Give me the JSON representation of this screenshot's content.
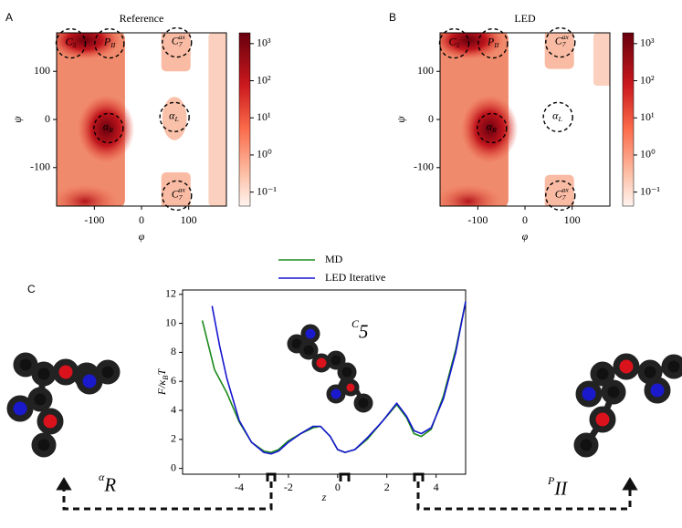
{
  "chart_data": [
    {
      "type": "heatmap",
      "panel": "A",
      "title": "Reference",
      "xlabel": "φ",
      "ylabel": "ψ",
      "xlim": [
        -180,
        180
      ],
      "ylim": [
        -180,
        180
      ],
      "xticks": [
        -100,
        0,
        100
      ],
      "yticks": [
        -100,
        0,
        100
      ],
      "colorscale": "log",
      "clim": [
        0.042,
        1950
      ],
      "cticks": [
        {
          "value": 0.1,
          "label": "10⁻¹"
        },
        {
          "value": 1,
          "label": "10⁰"
        },
        {
          "value": 10,
          "label": "10¹"
        },
        {
          "value": 100,
          "label": "10²"
        },
        {
          "value": 1000,
          "label": "10³"
        }
      ],
      "annotations": [
        {
          "base": "C",
          "sub": "5",
          "x": -150,
          "y": 158
        },
        {
          "base": "P",
          "sub": "II",
          "x": -68,
          "y": 158
        },
        {
          "base": "C",
          "sub": "7",
          "sup": "ax",
          "x": 75,
          "y": 160
        },
        {
          "base": "α",
          "sub": "R",
          "x": -70,
          "y": -18
        },
        {
          "base": "α",
          "sub": "L",
          "x": 70,
          "y": 5
        },
        {
          "base": "C",
          "sub": "7",
          "sup": "ax",
          "x": 75,
          "y": -158
        }
      ]
    },
    {
      "type": "heatmap",
      "panel": "B",
      "title": "LED",
      "xlabel": "φ",
      "ylabel": "ψ",
      "xlim": [
        -180,
        180
      ],
      "ylim": [
        -180,
        180
      ],
      "xticks": [
        -100,
        0,
        100
      ],
      "yticks": [
        -100,
        0,
        100
      ],
      "colorscale": "log",
      "clim": [
        0.042,
        1950
      ],
      "cticks": [
        {
          "value": 0.1,
          "label": "10⁻¹"
        },
        {
          "value": 1,
          "label": "10⁰"
        },
        {
          "value": 10,
          "label": "10¹"
        },
        {
          "value": 100,
          "label": "10²"
        },
        {
          "value": 1000,
          "label": "10³"
        }
      ],
      "annotations": [
        {
          "base": "C",
          "sub": "5",
          "x": -150,
          "y": 158
        },
        {
          "base": "P",
          "sub": "II",
          "x": -68,
          "y": 158
        },
        {
          "base": "C",
          "sub": "7",
          "sup": "ax",
          "x": 75,
          "y": 160
        },
        {
          "base": "α",
          "sub": "R",
          "x": -70,
          "y": -18
        },
        {
          "base": "α",
          "sub": "L",
          "x": 70,
          "y": 5
        },
        {
          "base": "C",
          "sub": "7",
          "sup": "ax",
          "x": 75,
          "y": -158
        }
      ]
    },
    {
      "type": "line",
      "panel": "C",
      "xlabel": "z",
      "ylabel": {
        "base": "F/κ",
        "sub": "B",
        "tail": "T"
      },
      "xlim": [
        -6.3,
        5.2
      ],
      "ylim": [
        -0.4,
        12.3
      ],
      "xticks": [
        -4,
        -2,
        0,
        2,
        4
      ],
      "yticks": [
        0,
        2,
        4,
        6,
        8,
        10,
        12
      ],
      "inset_label": {
        "base": "C",
        "sub": "5"
      },
      "left_label": {
        "base": "α",
        "sub": "R"
      },
      "right_label": {
        "base": "P",
        "sub": "II"
      },
      "series": [
        {
          "name": "MD",
          "color": "#1a8a1a",
          "x": [
            -5.5,
            -5,
            -4.5,
            -4,
            -3.5,
            -3,
            -2.7,
            -2.4,
            -2,
            -1.5,
            -1,
            -0.7,
            -0.3,
            0,
            0.3,
            0.7,
            1.2,
            1.8,
            2.4,
            2.8,
            3.1,
            3.4,
            3.8,
            4.3,
            4.8,
            5.2
          ],
          "values": [
            10.2,
            6.8,
            5.2,
            3.2,
            1.8,
            1.2,
            1.1,
            1.3,
            1.9,
            2.4,
            2.8,
            2.9,
            2.2,
            1.3,
            1.1,
            1.3,
            2.0,
            3.2,
            4.4,
            3.5,
            2.4,
            2.2,
            2.7,
            5.0,
            8.2,
            11.5
          ]
        },
        {
          "name": "LED Iterative",
          "color": "#1515d0",
          "x": [
            -5.1,
            -4.8,
            -4.5,
            -4,
            -3.5,
            -3,
            -2.7,
            -2.4,
            -2,
            -1.5,
            -1,
            -0.7,
            -0.3,
            0,
            0.3,
            0.7,
            1.2,
            1.8,
            2.4,
            2.8,
            3.1,
            3.4,
            3.8,
            4.3,
            4.8,
            5.2
          ],
          "values": [
            11.2,
            8.5,
            6.2,
            3.3,
            1.8,
            1.1,
            1.0,
            1.2,
            1.8,
            2.4,
            2.9,
            2.9,
            2.2,
            1.3,
            1.1,
            1.3,
            2.1,
            3.2,
            4.5,
            3.6,
            2.6,
            2.4,
            2.8,
            4.8,
            8.0,
            11.5
          ]
        }
      ]
    }
  ]
}
